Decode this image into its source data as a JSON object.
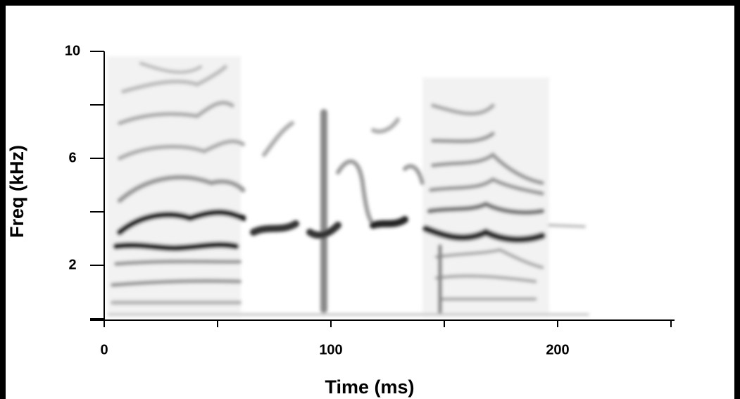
{
  "chart_data": {
    "type": "spectrogram",
    "xlabel": "Time (ms)",
    "ylabel": "Freq (kHz)",
    "xlim": [
      0,
      250
    ],
    "ylim": [
      0,
      10
    ],
    "xticks": [
      0,
      100,
      200
    ],
    "minor_xticks": [
      50,
      150,
      250
    ],
    "yticks": [
      2,
      6,
      10
    ],
    "minor_yticks": [
      0,
      4,
      8
    ]
  }
}
